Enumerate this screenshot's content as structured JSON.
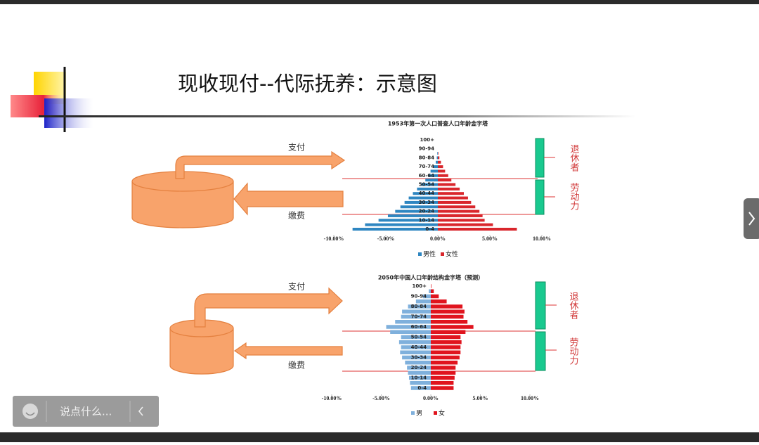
{
  "slide": {
    "title": "现收现付--代际抚养：示意图",
    "diagrams": [
      {
        "pay": "支付",
        "contribute": "缴费",
        "retirees": "退休者",
        "workers": "劳动力"
      },
      {
        "pay": "支付",
        "contribute": "缴费",
        "retirees": "退休者",
        "workers": "劳动力"
      }
    ]
  },
  "ui": {
    "chat_placeholder": "说点什么..."
  },
  "chart_data": [
    {
      "type": "pyramid",
      "title": "1953年第一次人口普查人口年龄金字塔",
      "categories": [
        "0-4",
        null,
        "10-14",
        null,
        "20-24",
        null,
        "30-34",
        null,
        "40-44",
        null,
        "50-54",
        null,
        "60-64",
        null,
        "70-74",
        null,
        "80-84",
        null,
        "90-94",
        null,
        "100+"
      ],
      "series": [
        {
          "name": "男性",
          "color": "#2e86c1",
          "values": [
            -8.2,
            -7.0,
            -5.7,
            -4.8,
            -4.1,
            -3.6,
            -3.2,
            -2.8,
            -2.4,
            -2.0,
            -1.6,
            -1.2,
            -0.9,
            -0.7,
            -0.4,
            -0.2,
            -0.1,
            -0.05,
            0,
            0,
            0
          ]
        },
        {
          "name": "女性",
          "color": "#d9262c",
          "values": [
            7.6,
            5.3,
            4.5,
            4.3,
            4.0,
            3.6,
            3.2,
            2.9,
            2.5,
            2.1,
            1.7,
            1.3,
            1.0,
            0.7,
            0.5,
            0.3,
            0.15,
            0.05,
            0,
            0,
            0
          ]
        }
      ],
      "xlim": [
        -10,
        10
      ],
      "xticks": [
        {
          "value": -10,
          "label": "-10.00%"
        },
        {
          "value": -5,
          "label": "-5.00%"
        },
        {
          "value": 0,
          "label": "0.00%"
        },
        {
          "value": 5,
          "label": "5.00%"
        },
        {
          "value": 10,
          "label": "10.00%"
        }
      ],
      "legend": "bottom"
    },
    {
      "type": "pyramid",
      "title": "2050年中国人口年龄结构金字塔（预测）",
      "categories": [
        "0-4",
        null,
        "10-14",
        null,
        "20-24",
        null,
        "30-34",
        null,
        "40-44",
        null,
        "50-54",
        null,
        "60-64",
        null,
        "70-74",
        null,
        "80-84",
        null,
        "90-94",
        null,
        "100+"
      ],
      "series": [
        {
          "name": "男",
          "color": "#7fb0dc",
          "values": [
            -2.0,
            -2.1,
            -2.2,
            -2.3,
            -2.4,
            -2.6,
            -2.9,
            -3.1,
            -3.0,
            -3.2,
            -3.0,
            -4.1,
            -4.5,
            -3.6,
            -3.0,
            -2.9,
            -2.3,
            -1.5,
            -0.8,
            -0.2,
            0
          ]
        },
        {
          "name": "女",
          "color": "#e0141e",
          "values": [
            2.3,
            2.3,
            2.4,
            2.5,
            2.5,
            2.7,
            2.9,
            3.0,
            3.0,
            3.1,
            3.0,
            3.5,
            4.3,
            3.7,
            3.3,
            3.4,
            3.2,
            1.6,
            0.8,
            0.3,
            0.05
          ]
        }
      ],
      "xlim": [
        -10,
        10
      ],
      "xticks": [
        {
          "value": -10,
          "label": "-10.00%"
        },
        {
          "value": -5,
          "label": "-5.00%"
        },
        {
          "value": 0,
          "label": "0.00%"
        },
        {
          "value": 5,
          "label": "5.00%"
        },
        {
          "value": 10,
          "label": "10.00%"
        }
      ],
      "legend": "bottom"
    }
  ]
}
